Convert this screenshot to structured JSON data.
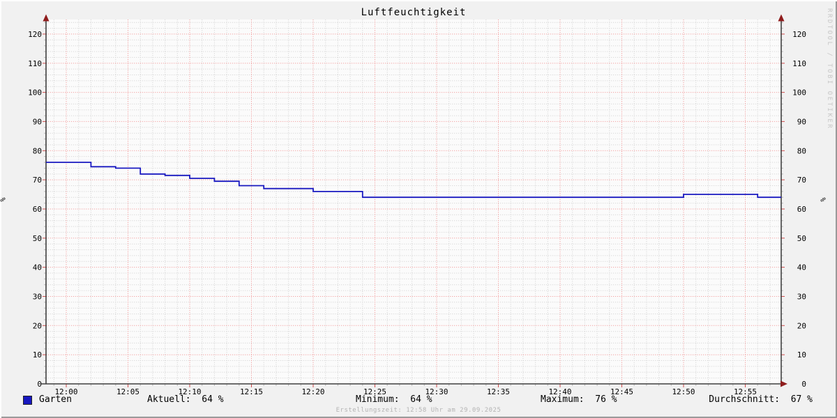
{
  "chart_data": {
    "type": "line",
    "title": "Luftfeuchtigkeit",
    "ylabel": "%",
    "ylim": [
      0,
      125
    ],
    "y_tick_step_major": 10,
    "y_tick_step_minor": 2,
    "y_ticks": [
      0,
      10,
      20,
      30,
      40,
      50,
      60,
      70,
      80,
      90,
      100,
      110,
      120
    ],
    "x_ticks": [
      "12:00",
      "12:05",
      "12:10",
      "12:15",
      "12:20",
      "12:25",
      "12:30",
      "12:35",
      "12:40",
      "12:45",
      "12:50",
      "12:55"
    ],
    "x_minor_step_minutes": 1,
    "grid": true,
    "legend_position": "bottom",
    "series": [
      {
        "name": "Garten",
        "unit": "%",
        "steps": [
          {
            "time": "11:58",
            "value": 76
          },
          {
            "time": "12:02",
            "value": 74.5
          },
          {
            "time": "12:04",
            "value": 74
          },
          {
            "time": "12:06",
            "value": 72
          },
          {
            "time": "12:08",
            "value": 71.5
          },
          {
            "time": "12:10",
            "value": 70.5
          },
          {
            "time": "12:12",
            "value": 69.5
          },
          {
            "time": "12:14",
            "value": 68
          },
          {
            "time": "12:16",
            "value": 67
          },
          {
            "time": "12:20",
            "value": 66
          },
          {
            "time": "12:24",
            "value": 64
          },
          {
            "time": "12:50",
            "value": 65
          },
          {
            "time": "12:56",
            "value": 64
          }
        ],
        "end_time": "12:58"
      }
    ]
  },
  "legend": {
    "series_label": "Garten",
    "stats": [
      {
        "label": "Aktuell:",
        "value": "64 %"
      },
      {
        "label": "Minimum:",
        "value": "64 %"
      },
      {
        "label": "Maximum:",
        "value": "76 %"
      },
      {
        "label": "Durchschnitt:",
        "value": "67 %"
      }
    ]
  },
  "footer": {
    "text": "Erstellungszeit: 12:58 Uhr am 29.09.2025"
  },
  "watermark": "RRDTOOL / TOBI OETIKER",
  "colors": {
    "line": "#1818c0",
    "swatch": "#1818c0",
    "grid_major": "#f3a1a1",
    "grid_minor": "#d8d8d8",
    "tick_major": "#d04b4b",
    "tick_minor": "#bbbbbb",
    "axis": "#404040",
    "arrow": "#8f1d1d",
    "canvas": "#fbfbfb",
    "background": "#f1f1f1",
    "footer_text": "#b4b4b4",
    "watermark_text": "#c6c6c6"
  }
}
